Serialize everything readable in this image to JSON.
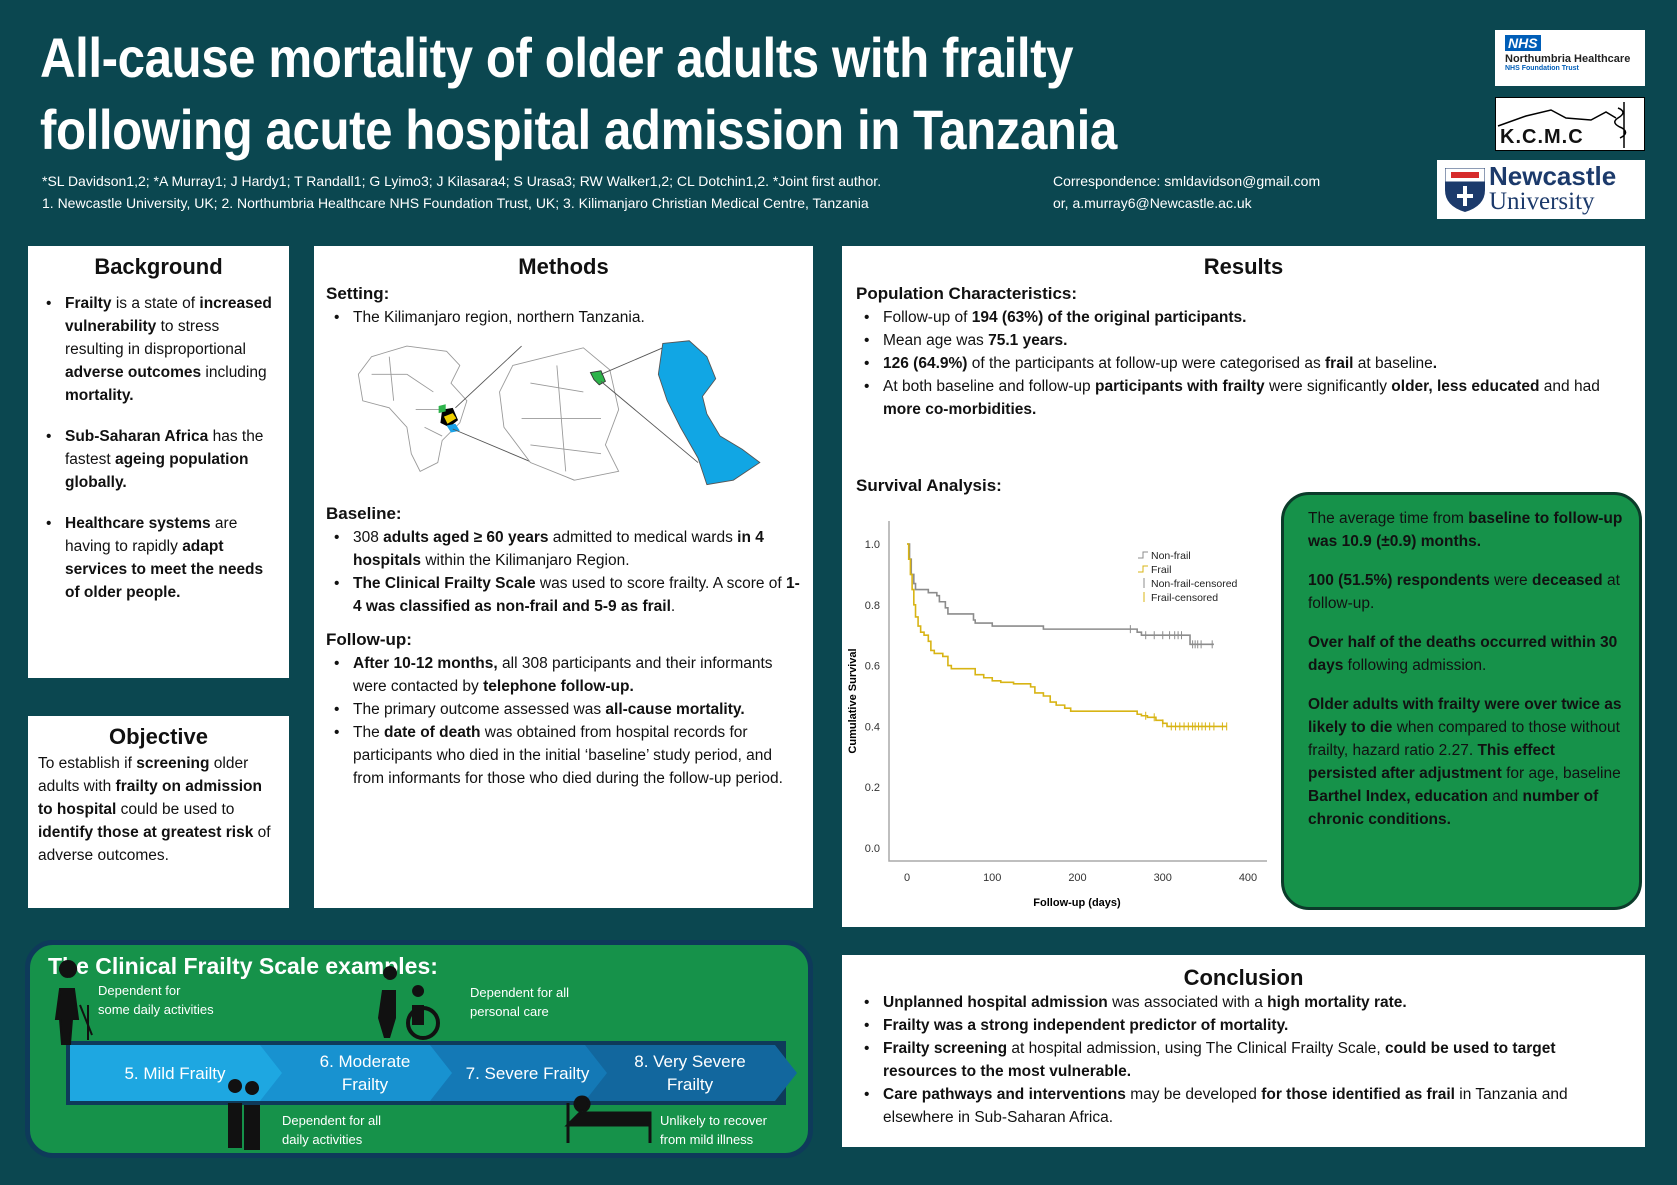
{
  "header": {
    "title_line1": "All-cause mortality of older adults with frailty",
    "title_line2": "following acute hospital admission in Tanzania",
    "authors": "*SL Davidson1,2; *A Murray1; J Hardy1; T Randall1; G Lyimo3; J Kilasara4; S Urasa3; RW Walker1,2; CL Dotchin1,2. *Joint first author.",
    "affiliations": "1. Newcastle University, UK; 2. Northumbria Healthcare NHS Foundation Trust, UK; 3. Kilimanjaro Christian Medical Centre, Tanzania",
    "correspondence_label": "Correspondence: ",
    "correspondence_email": "smldavidson@gmail.com",
    "correspondence_alt": "or, a.murray6@Newcastle.ac.uk",
    "logos": {
      "nhs": "NHS",
      "nhs_name": "Northumbria Healthcare",
      "nhs_trust": "NHS Foundation Trust",
      "kcmc": "K.C.M.C",
      "newcastle1": "Newcastle",
      "newcastle2": "University"
    }
  },
  "background": {
    "title": "Background",
    "items": [
      [
        {
          "t": "Frailty",
          "b": 1
        },
        {
          "t": " is a state of "
        },
        {
          "t": "increased vulnerability",
          "b": 1
        },
        {
          "t": " to stress resulting in disproportional "
        },
        {
          "t": "adverse outcomes",
          "b": 1
        },
        {
          "t": " including "
        },
        {
          "t": "mortality.",
          "b": 1
        }
      ],
      [
        {
          "t": "Sub-Saharan Africa",
          "b": 1
        },
        {
          "t": " has the fastest "
        },
        {
          "t": "ageing population globally.",
          "b": 1
        }
      ],
      [
        {
          "t": "Healthcare systems",
          "b": 1
        },
        {
          "t": " are having to rapidly "
        },
        {
          "t": "adapt services to meet the needs of older people.",
          "b": 1
        }
      ]
    ]
  },
  "objective": {
    "title": "Objective",
    "text": [
      {
        "t": "To establish if "
      },
      {
        "t": "screening",
        "b": 1
      },
      {
        "t": " older adults with "
      },
      {
        "t": "frailty on admission to hospital",
        "b": 1
      },
      {
        "t": " could be used to "
      },
      {
        "t": "identify those at greatest risk",
        "b": 1
      },
      {
        "t": " of adverse outcomes."
      }
    ]
  },
  "methods": {
    "title": "Methods",
    "setting_label": "Setting:",
    "setting": [
      [
        {
          "t": "The Kilimanjaro region, northern Tanzania."
        }
      ]
    ],
    "baseline_label": "Baseline:",
    "baseline": [
      [
        {
          "t": "308 "
        },
        {
          "t": "adults aged ≥ 60 years",
          "b": 1
        },
        {
          "t": " admitted to medical wards "
        },
        {
          "t": "in 4 hospitals",
          "b": 1
        },
        {
          "t": " within the Kilimanjaro Region."
        }
      ],
      [
        {
          "t": "The Clinical Frailty Scale",
          "b": 1
        },
        {
          "t": " was used to score frailty. A score of "
        },
        {
          "t": "1-4 was classified as non-frail and 5-9 as frail",
          "b": 1
        },
        {
          "t": "."
        }
      ]
    ],
    "followup_label": "Follow-up:",
    "followup": [
      [
        {
          "t": "After 10-12 months,",
          "b": 1
        },
        {
          "t": " all 308 participants and their informants were contacted by "
        },
        {
          "t": "telephone follow-up.",
          "b": 1
        }
      ],
      [
        {
          "t": "The primary outcome assessed was "
        },
        {
          "t": "all-cause mortality.",
          "b": 1
        }
      ],
      [
        {
          "t": "The "
        },
        {
          "t": "date of death",
          "b": 1
        },
        {
          "t": " was obtained from hospital records for participants who died in the initial ‘baseline’ study period, and from informants for those who died during the follow-up period."
        }
      ]
    ]
  },
  "results": {
    "title": "Results",
    "pop_label": "Population Characteristics:",
    "pop": [
      [
        {
          "t": "Follow-up of "
        },
        {
          "t": "194 (63%) of the original participants.",
          "b": 1
        }
      ],
      [
        {
          "t": "Mean age was "
        },
        {
          "t": "75.1 years.",
          "b": 1
        }
      ],
      [
        {
          "t": "126 (64.9%)",
          "b": 1
        },
        {
          "t": " of the participants at follow-up were categorised as "
        },
        {
          "t": "frail",
          "b": 1
        },
        {
          "t": " at baseline"
        },
        {
          "t": ".",
          "b": 1
        }
      ],
      [
        {
          "t": "At both baseline and follow-up "
        },
        {
          "t": "participants with frailty",
          "b": 1
        },
        {
          "t": " were significantly "
        },
        {
          "t": "older, less educated",
          "b": 1
        },
        {
          "t": " and had "
        },
        {
          "t": "more co-morbidities.",
          "b": 1
        }
      ]
    ],
    "survival_label": "Survival Analysis:",
    "findings": [
      [
        {
          "t": "The average time from "
        },
        {
          "t": "baseline to follow-up was 10.9 (±0.9) months.",
          "b": 1
        }
      ],
      [
        {
          "t": "100 (51.5%) respondents",
          "b": 1
        },
        {
          "t": " were "
        },
        {
          "t": "deceased",
          "b": 1
        },
        {
          "t": " at follow-up."
        }
      ],
      [
        {
          "t": "Over half of the deaths occurred within 30 days",
          "b": 1
        },
        {
          "t": " following admission."
        }
      ],
      [
        {
          "t": "Older adults with frailty were over twice as likely to die",
          "b": 1
        },
        {
          "t": " when compared to those without frailty, hazard ratio 2.27. "
        },
        {
          "t": "This effect persisted after adjustment",
          "b": 1
        },
        {
          "t": " for age, baseline "
        },
        {
          "t": "Barthel Index, education",
          "b": 1
        },
        {
          "t": " and "
        },
        {
          "t": "number of chronic conditions.",
          "b": 1
        }
      ]
    ]
  },
  "chart_data": {
    "type": "line",
    "title": "",
    "xlabel": "Follow-up (days)",
    "ylabel": "Cumulative Survival",
    "xlim": [
      0,
      400
    ],
    "ylim": [
      0,
      1
    ],
    "xticks": [
      "0",
      "100",
      "200",
      "300",
      "400"
    ],
    "yticks": [
      "0.0",
      "0.2",
      "0.4",
      "0.6",
      "0.8",
      "1.0"
    ],
    "legend": [
      "Non-frail",
      "Frail",
      "Non-frail-censored",
      "Frail-censored"
    ],
    "legend_position": "top-right",
    "series": [
      {
        "name": "Non-frail",
        "color": "#8c8c8c",
        "x": [
          0,
          3,
          5,
          8,
          10,
          25,
          35,
          38,
          45,
          48,
          78,
          80,
          100,
          160,
          270,
          275,
          332,
          360
        ],
        "y": [
          1,
          0.95,
          0.9,
          0.87,
          0.85,
          0.84,
          0.83,
          0.81,
          0.79,
          0.77,
          0.75,
          0.74,
          0.73,
          0.72,
          0.71,
          0.7,
          0.67,
          0.67
        ],
        "censored": [
          262,
          280,
          290,
          300,
          308,
          314,
          318,
          322,
          335,
          338,
          341,
          345,
          358
        ]
      },
      {
        "name": "Frail",
        "color": "#d8b414",
        "x": [
          0,
          2,
          4,
          6,
          8,
          10,
          13,
          16,
          20,
          25,
          28,
          32,
          42,
          48,
          52,
          80,
          90,
          100,
          110,
          125,
          145,
          150,
          160,
          168,
          175,
          185,
          192,
          270,
          275,
          282,
          292,
          300,
          305,
          375
        ],
        "y": [
          1,
          0.95,
          0.9,
          0.85,
          0.8,
          0.76,
          0.73,
          0.71,
          0.7,
          0.68,
          0.65,
          0.64,
          0.63,
          0.6,
          0.59,
          0.57,
          0.56,
          0.55,
          0.545,
          0.54,
          0.53,
          0.51,
          0.5,
          0.48,
          0.47,
          0.46,
          0.45,
          0.44,
          0.435,
          0.43,
          0.42,
          0.41,
          0.4,
          0.4
        ],
        "censored": [
          280,
          290,
          300,
          310,
          315,
          320,
          325,
          330,
          335,
          338,
          342,
          346,
          350,
          355,
          360,
          370,
          375
        ]
      }
    ]
  },
  "frailty_scale": {
    "title": "The Clinical Frailty Scale examples:",
    "steps": [
      [
        "5. Mild Frailty"
      ],
      [
        "6. Moderate",
        "Frailty"
      ],
      [
        "7. Severe Frailty"
      ],
      [
        "8. Very Severe",
        "Frailty"
      ]
    ],
    "captions": [
      [
        "Dependent for",
        "some daily activities"
      ],
      [
        "Dependent for all",
        "daily activities"
      ],
      [
        "Dependent for all",
        "personal care"
      ],
      [
        "Unlikely to recover",
        "from mild illness"
      ]
    ],
    "colors": [
      "#1ea7e1",
      "#1892d0",
      "#1479b6",
      "#12679e"
    ]
  },
  "conclusion": {
    "title": "Conclusion",
    "items": [
      [
        {
          "t": "Unplanned hospital admission",
          "b": 1
        },
        {
          "t": " was associated with a "
        },
        {
          "t": "high mortality rate.",
          "b": 1
        }
      ],
      [
        {
          "t": "Frailty was a strong independent predictor of mortality.",
          "b": 1
        }
      ],
      [
        {
          "t": "Frailty screening",
          "b": 1
        },
        {
          "t": " at hospital admission, using The Clinical Frailty Scale, "
        },
        {
          "t": "could be used to target resources to the most vulnerable.",
          "b": 1
        }
      ],
      [
        {
          "t": "Care pathways and interventions",
          "b": 1
        },
        {
          "t": " may be developed "
        },
        {
          "t": "for those identified as frail",
          "b": 1
        },
        {
          "t": " in Tanzania and elsewhere in Sub-Saharan Africa."
        }
      ]
    ]
  }
}
